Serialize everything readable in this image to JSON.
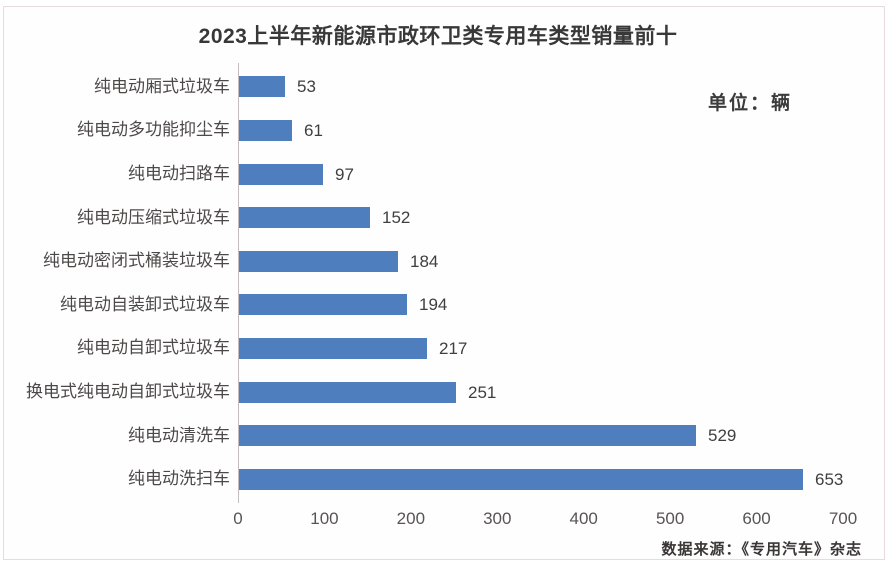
{
  "title": "2023上半年新能源市政环卫类专用车类型销量前十",
  "unit_label": "单位：辆",
  "source_label": "数据来源：《专用汽车》杂志",
  "colors": {
    "bar": "#4E7EBD",
    "axis_line": "#c3bdbd",
    "title_text": "#383838",
    "category_text": "#4d4949",
    "value_text": "#3f3f3f",
    "tick_text": "#585454",
    "border": "#e7dcdc",
    "background": "#ffffff"
  },
  "chart_data": {
    "type": "bar",
    "orientation": "horizontal",
    "title": "2023上半年新能源市政环卫类专用车类型销量前十",
    "unit": "辆",
    "categories": [
      "纯电动厢式垃圾车",
      "纯电动多功能抑尘车",
      "纯电动扫路车",
      "纯电动压缩式垃圾车",
      "纯电动密闭式桶装垃圾车",
      "纯电动自装卸式垃圾车",
      "纯电动自卸式垃圾车",
      "换电式纯电动自卸式垃圾车",
      "纯电动清洗车",
      "纯电动洗扫车"
    ],
    "values": [
      53,
      61,
      97,
      152,
      184,
      194,
      217,
      251,
      529,
      653
    ],
    "data_labels": [
      53,
      61,
      97,
      152,
      184,
      194,
      217,
      251,
      529,
      653
    ],
    "xlabel": "",
    "ylabel": "",
    "xlim": [
      0,
      700
    ],
    "x_ticks": [
      0,
      100,
      200,
      300,
      400,
      500,
      600,
      700
    ],
    "grid": false,
    "legend": false,
    "source": "数据来源：《专用汽车》杂志"
  }
}
